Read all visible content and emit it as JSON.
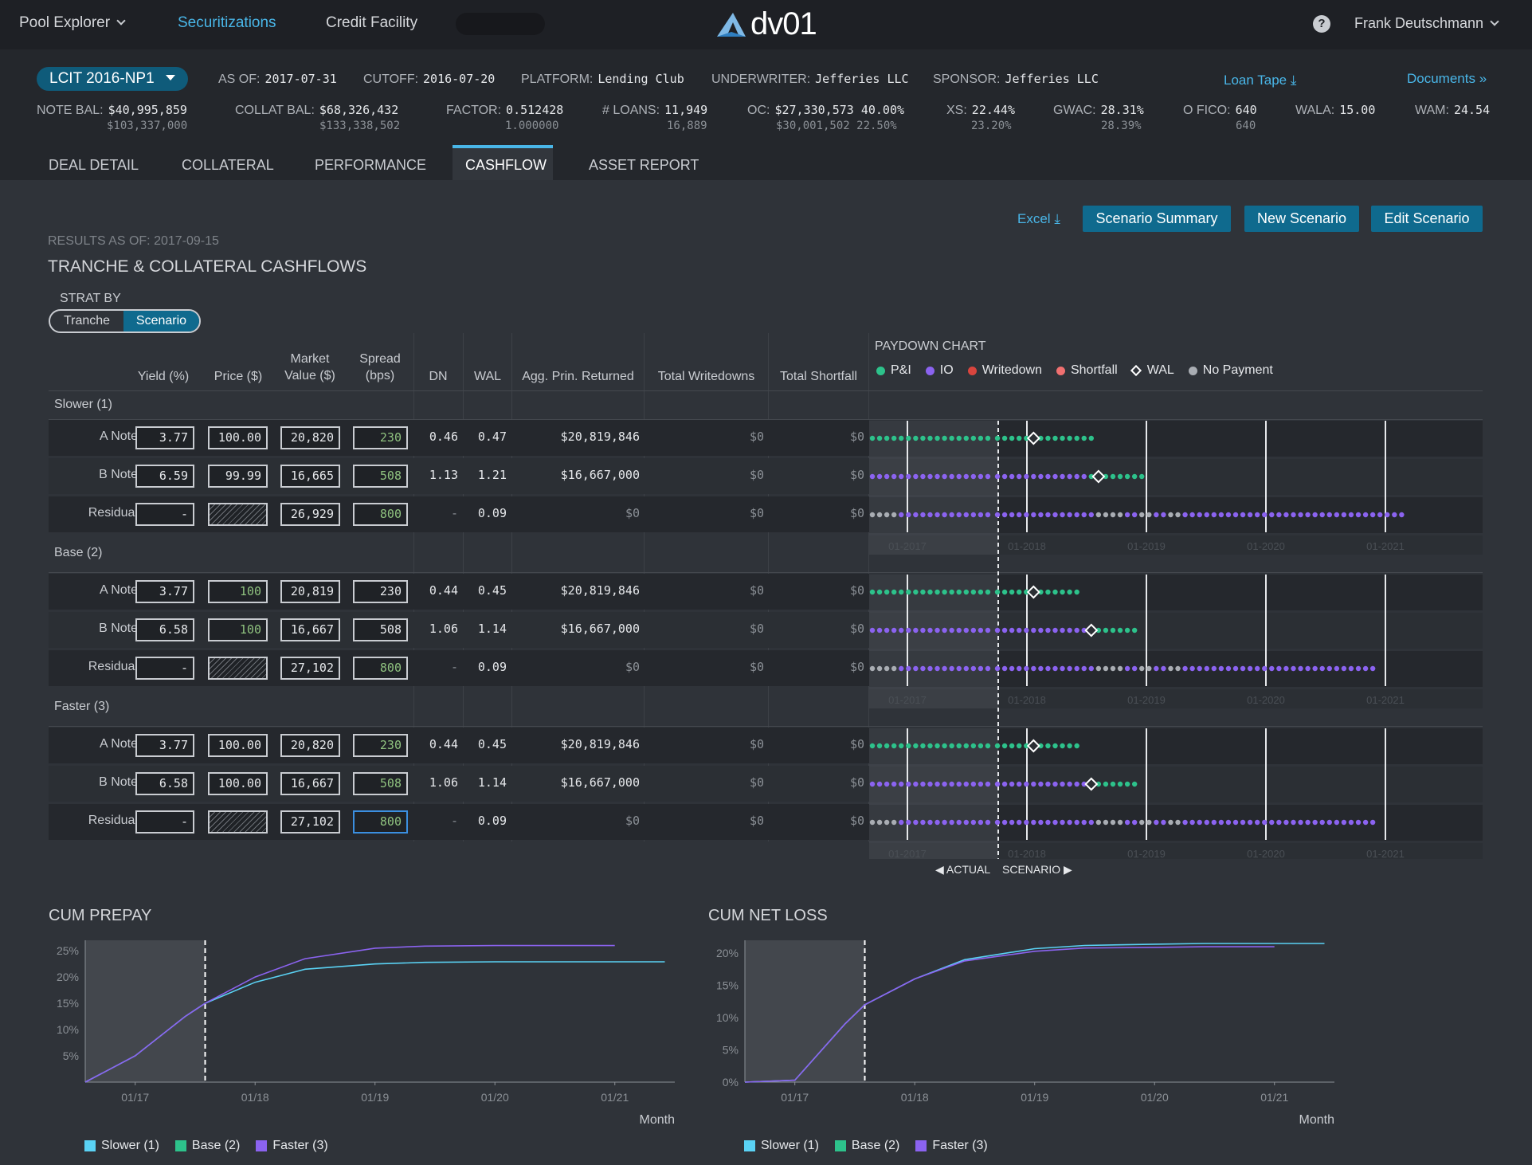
{
  "nav": {
    "pool_explorer": "Pool Explorer",
    "securitizations": "Securitizations",
    "credit_facility": "Credit Facility",
    "logo": "dv01",
    "user": "Frank Deutschmann"
  },
  "deal": {
    "name": "LCIT 2016-NP1",
    "as_of_label": "AS OF:",
    "as_of": "2017-07-31",
    "cutoff_label": "CUTOFF:",
    "cutoff": "2016-07-20",
    "platform_label": "PLATFORM:",
    "platform": "Lending Club",
    "underwriter_label": "UNDERWRITER:",
    "underwriter": "Jefferies LLC",
    "sponsor_label": "SPONSOR:",
    "sponsor": "Jefferies LLC",
    "loan_tape": "Loan Tape",
    "documents": "Documents"
  },
  "stats": {
    "note_bal_label": "NOTE BAL:",
    "note_bal": "$40,995,859",
    "note_bal_orig": "$103,337,000",
    "collat_bal_label": "COLLAT BAL:",
    "collat_bal": "$68,326,432",
    "collat_bal_orig": "$133,338,502",
    "factor_label": "FACTOR:",
    "factor": "0.512428",
    "factor_orig": "1.000000",
    "loans_label": "# LOANS:",
    "loans": "11,949",
    "loans_orig": "16,889",
    "oc_label": "OC:",
    "oc": "$27,330,573 40.00%",
    "oc_orig": "$30,001,502 22.50%",
    "xs_label": "XS:",
    "xs": "22.44%",
    "xs_orig": "23.20%",
    "gwac_label": "GWAC:",
    "gwac": "28.31%",
    "gwac_orig": "28.39%",
    "ofico_label": "O FICO:",
    "ofico": "640",
    "ofico_orig": "640",
    "wala_label": "WALA:",
    "wala": "15.00",
    "wam_label": "WAM:",
    "wam": "24.54"
  },
  "tabs": [
    "DEAL DETAIL",
    "COLLATERAL",
    "PERFORMANCE",
    "CASHFLOW",
    "ASSET REPORT"
  ],
  "actions": {
    "excel": "Excel",
    "scenario_summary": "Scenario Summary",
    "new_scenario": "New Scenario",
    "edit_scenario": "Edit Scenario"
  },
  "results_as_of": "RESULTS AS OF: 2017-09-15",
  "section_title": "TRANCHE & COLLATERAL CASHFLOWS",
  "strat": {
    "label": "STRAT BY",
    "tranche": "Tranche",
    "scenario": "Scenario"
  },
  "columns": {
    "yield": "Yield (%)",
    "price": "Price ($)",
    "market_value_1": "Market",
    "market_value_2": "Value ($)",
    "spread_1": "Spread",
    "spread_2": "(bps)",
    "dn": "DN",
    "wal": "WAL",
    "agg_prin": "Agg. Prin. Returned",
    "total_writedowns": "Total Writedowns",
    "total_shortfall": "Total Shortfall"
  },
  "groups": [
    {
      "name": "Slower (1)",
      "rows": [
        {
          "tranche": "A Note",
          "yield": "3.77",
          "price": "100.00",
          "mv": "20,820",
          "spread": "230",
          "dn": "0.46",
          "wal": "0.47",
          "agg": "$20,819,846",
          "wd": "$0",
          "sf": "$0"
        },
        {
          "tranche": "B Note",
          "yield": "6.59",
          "price": "99.99",
          "mv": "16,665",
          "spread": "508",
          "dn": "1.13",
          "wal": "1.21",
          "agg": "$16,667,000",
          "wd": "$0",
          "sf": "$0"
        },
        {
          "tranche": "Residual",
          "yield": "-",
          "price": "",
          "mv": "26,929",
          "spread": "800",
          "dn": "-",
          "wal": "0.09",
          "agg": "$0",
          "wd": "$0",
          "sf": "$0"
        }
      ]
    },
    {
      "name": "Base (2)",
      "rows": [
        {
          "tranche": "A Note",
          "yield": "3.77",
          "price": "100",
          "mv": "20,819",
          "spread": "230",
          "dn": "0.44",
          "wal": "0.45",
          "agg": "$20,819,846",
          "wd": "$0",
          "sf": "$0"
        },
        {
          "tranche": "B Note",
          "yield": "6.58",
          "price": "100",
          "mv": "16,667",
          "spread": "508",
          "dn": "1.06",
          "wal": "1.14",
          "agg": "$16,667,000",
          "wd": "$0",
          "sf": "$0"
        },
        {
          "tranche": "Residual",
          "yield": "-",
          "price": "",
          "mv": "27,102",
          "spread": "800",
          "dn": "-",
          "wal": "0.09",
          "agg": "$0",
          "wd": "$0",
          "sf": "$0"
        }
      ]
    },
    {
      "name": "Faster (3)",
      "rows": [
        {
          "tranche": "A Note",
          "yield": "3.77",
          "price": "100.00",
          "mv": "20,820",
          "spread": "230",
          "dn": "0.44",
          "wal": "0.45",
          "agg": "$20,819,846",
          "wd": "$0",
          "sf": "$0"
        },
        {
          "tranche": "B Note",
          "yield": "6.58",
          "price": "100.00",
          "mv": "16,667",
          "spread": "508",
          "dn": "1.06",
          "wal": "1.14",
          "agg": "$16,667,000",
          "wd": "$0",
          "sf": "$0"
        },
        {
          "tranche": "Residual",
          "yield": "-",
          "price": "",
          "mv": "27,102",
          "spread": "800",
          "dn": "-",
          "wal": "0.09",
          "agg": "$0",
          "wd": "$0",
          "sf": "$0"
        }
      ]
    }
  ],
  "paydown": {
    "title": "PAYDOWN CHART",
    "legend": [
      {
        "label": "P&I",
        "color": "#2dc28b",
        "shape": "dot"
      },
      {
        "label": "IO",
        "color": "#8b63f0",
        "shape": "dot"
      },
      {
        "label": "Writedown",
        "color": "#d9453e",
        "shape": "dot"
      },
      {
        "label": "Shortfall",
        "color": "#f07070",
        "shape": "dot"
      },
      {
        "label": "WAL",
        "color": "#ffffff",
        "shape": "diamond"
      },
      {
        "label": "No Payment",
        "color": "#a9adb3",
        "shape": "dot"
      }
    ],
    "year_ticks": [
      "01-2017",
      "01-2018",
      "01-2019",
      "01-2020",
      "01-2021"
    ],
    "actual_label": "◀ ACTUAL",
    "scenario_label": "SCENARIO ▶"
  },
  "colors": {
    "pi": "#2dc28b",
    "io": "#8b63f0",
    "nopay": "#a9adb3",
    "accent": "#49b6e8",
    "button": "#0f6a8e",
    "slower": "#5ad2f4",
    "base": "#2dc28b",
    "faster": "#8b63f0"
  },
  "chart_data": [
    {
      "type": "line",
      "title": "CUM PREPAY",
      "xlabel": "Month",
      "x_ticks": [
        "01/17",
        "01/18",
        "01/19",
        "01/20",
        "01/21"
      ],
      "y_ticks": [
        "5%",
        "10%",
        "15%",
        "20%",
        "25%"
      ],
      "ylim": [
        0,
        0.27
      ],
      "x": [
        "08/16",
        "01/17",
        "06/17",
        "08/17",
        "01/18",
        "06/18",
        "01/19",
        "06/19",
        "01/20",
        "06/20",
        "01/21",
        "06/21"
      ],
      "series": [
        {
          "name": "Slower (1)",
          "color": "#5ad2f4",
          "values": [
            0,
            0.05,
            0.125,
            0.15,
            0.19,
            0.215,
            0.225,
            0.228,
            0.229,
            0.229,
            0.229,
            0.229
          ]
        },
        {
          "name": "Faster (3)",
          "color": "#8b63f0",
          "values": [
            0,
            0.05,
            0.125,
            0.15,
            0.2,
            0.235,
            0.255,
            0.259,
            0.26,
            0.26,
            0.26,
            null
          ]
        }
      ]
    },
    {
      "type": "line",
      "title": "CUM NET LOSS",
      "xlabel": "Month",
      "x_ticks": [
        "01/17",
        "01/18",
        "01/19",
        "01/20",
        "01/21"
      ],
      "y_ticks": [
        "0%",
        "5%",
        "10%",
        "15%",
        "20%"
      ],
      "ylim": [
        0,
        0.22
      ],
      "x": [
        "08/16",
        "01/17",
        "06/17",
        "08/17",
        "01/18",
        "06/18",
        "01/19",
        "06/19",
        "01/20",
        "06/20",
        "01/21",
        "06/21"
      ],
      "series": [
        {
          "name": "Slower (1)",
          "color": "#5ad2f4",
          "values": [
            0,
            0.003,
            0.09,
            0.12,
            0.16,
            0.19,
            0.207,
            0.212,
            0.214,
            0.215,
            0.215,
            0.215
          ]
        },
        {
          "name": "Faster (3)",
          "color": "#8b63f0",
          "values": [
            0,
            0.003,
            0.09,
            0.12,
            0.16,
            0.188,
            0.203,
            0.208,
            0.209,
            0.21,
            0.21,
            null
          ]
        }
      ]
    }
  ],
  "bottom_legend": [
    {
      "label": "Slower (1)",
      "color": "#5ad2f4"
    },
    {
      "label": "Base (2)",
      "color": "#2dc28b"
    },
    {
      "label": "Faster (3)",
      "color": "#8b63f0"
    }
  ]
}
